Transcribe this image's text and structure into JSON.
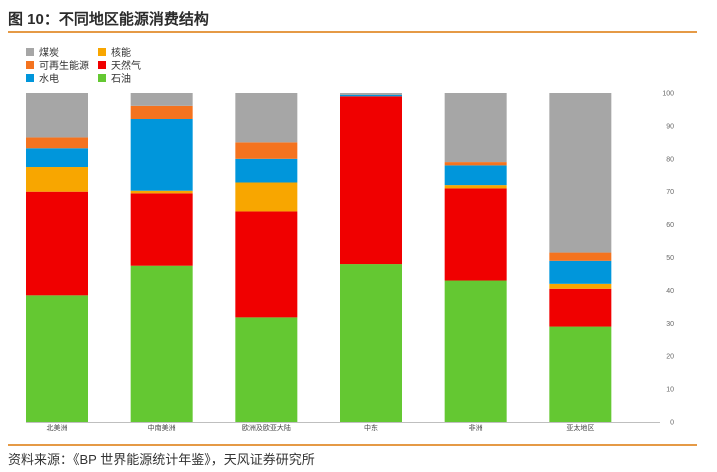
{
  "header": {
    "title": "图 10：不同地区能源消费结构"
  },
  "footer": {
    "source": "资料来源：《BP 世界能源统计年鉴》，天风证券研究所"
  },
  "legend": {
    "items": [
      {
        "label": "煤炭",
        "color": "#a6a6a6"
      },
      {
        "label": "可再生能源",
        "color": "#f4731f"
      },
      {
        "label": "水电",
        "color": "#0096db"
      },
      {
        "label": "核能",
        "color": "#f8a600"
      },
      {
        "label": "天然气",
        "color": "#f00000"
      },
      {
        "label": "石油",
        "color": "#64c832"
      }
    ]
  },
  "chart_data": {
    "type": "bar",
    "stacked": true,
    "ylim": [
      0,
      100
    ],
    "yticks": [
      0,
      10,
      20,
      30,
      40,
      50,
      60,
      70,
      80,
      90,
      100
    ],
    "y_axis_side": "right",
    "grid": false,
    "legend_position": "top-left",
    "title": "",
    "xlabel": "",
    "ylabel": "",
    "categories": [
      "北美洲",
      "中南美洲",
      "欧洲及欧亚大陆",
      "中东",
      "非洲",
      "亚太地区"
    ],
    "series": [
      {
        "name": "石油",
        "color": "#64c832",
        "values": [
          38.5,
          47.5,
          31.8,
          48,
          43,
          29
        ]
      },
      {
        "name": "天然气",
        "color": "#f00000",
        "values": [
          31.5,
          22,
          32.2,
          51,
          28,
          11.5
        ]
      },
      {
        "name": "核能",
        "color": "#f8a600",
        "values": [
          7.5,
          0.8,
          8.8,
          0,
          1,
          1.5
        ]
      },
      {
        "name": "水电",
        "color": "#0096db",
        "values": [
          5.7,
          21.8,
          7.2,
          0.5,
          6,
          7
        ]
      },
      {
        "name": "可再生能源",
        "color": "#f4731f",
        "values": [
          3.3,
          4,
          5,
          0.1,
          1,
          2.5
        ]
      },
      {
        "name": "煤炭",
        "color": "#a6a6a6",
        "values": [
          13.5,
          3.9,
          15,
          0.4,
          21,
          48.5
        ]
      }
    ]
  }
}
